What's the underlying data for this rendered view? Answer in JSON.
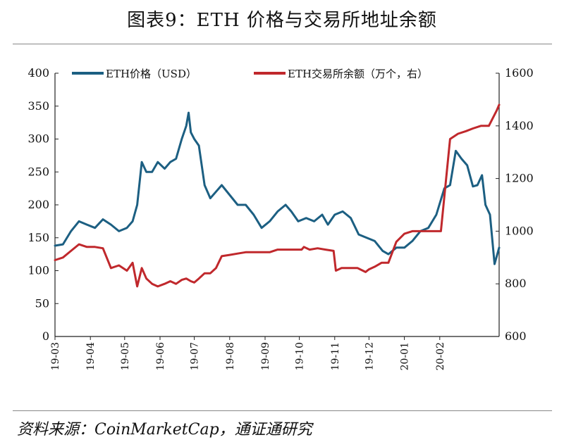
{
  "header": {
    "title": "图表9：ETH 价格与交易所地址余额"
  },
  "footer": {
    "source": "资料来源：CoinMarketCap，通证通研究"
  },
  "colors": {
    "price": "#1c5f82",
    "balance": "#c0282c",
    "axis": "#222222"
  },
  "chart_data": {
    "type": "line",
    "title": "图表9：ETH 价格与交易所地址余额",
    "x_ticks": [
      "19-03",
      "19-04",
      "19-05",
      "19-06",
      "19-07",
      "19-08",
      "19-09",
      "19-10",
      "19-11",
      "19-12",
      "20-01",
      "20-02"
    ],
    "left_axis": {
      "ylim": [
        0,
        400
      ],
      "ticks": [
        0,
        50,
        100,
        150,
        200,
        250,
        300,
        350,
        400
      ]
    },
    "right_axis": {
      "ylim": [
        600,
        1600
      ],
      "ticks": [
        600,
        800,
        1000,
        1200,
        1400,
        1600
      ]
    },
    "legend_position": "top",
    "grid": false,
    "series": [
      {
        "name": "ETH价格（USD）",
        "axis": "left",
        "x": [
          "2019-03-01",
          "2019-03-08",
          "2019-03-15",
          "2019-03-22",
          "2019-03-29",
          "2019-04-05",
          "2019-04-12",
          "2019-04-19",
          "2019-04-26",
          "2019-05-03",
          "2019-05-08",
          "2019-05-12",
          "2019-05-16",
          "2019-05-20",
          "2019-05-25",
          "2019-05-30",
          "2019-06-05",
          "2019-06-10",
          "2019-06-15",
          "2019-06-20",
          "2019-06-24",
          "2019-06-26",
          "2019-06-28",
          "2019-07-01",
          "2019-07-05",
          "2019-07-10",
          "2019-07-15",
          "2019-07-20",
          "2019-07-25",
          "2019-08-01",
          "2019-08-08",
          "2019-08-15",
          "2019-08-22",
          "2019-08-29",
          "2019-09-05",
          "2019-09-12",
          "2019-09-19",
          "2019-09-24",
          "2019-09-30",
          "2019-10-07",
          "2019-10-14",
          "2019-10-21",
          "2019-10-26",
          "2019-11-01",
          "2019-11-08",
          "2019-11-15",
          "2019-11-22",
          "2019-11-29",
          "2019-12-06",
          "2019-12-13",
          "2019-12-18",
          "2019-12-25",
          "2020-01-01",
          "2020-01-08",
          "2020-01-15",
          "2020-01-22",
          "2020-01-29",
          "2020-02-05",
          "2020-02-10",
          "2020-02-15",
          "2020-02-20",
          "2020-02-25",
          "2020-03-01",
          "2020-03-05",
          "2020-03-09",
          "2020-03-12",
          "2020-03-16",
          "2020-03-20",
          "2020-03-24"
        ],
        "values": [
          138,
          140,
          160,
          175,
          170,
          165,
          178,
          170,
          160,
          165,
          175,
          200,
          265,
          250,
          250,
          265,
          255,
          265,
          270,
          300,
          320,
          340,
          310,
          300,
          290,
          230,
          210,
          220,
          230,
          215,
          200,
          200,
          185,
          165,
          175,
          190,
          200,
          190,
          175,
          180,
          175,
          185,
          170,
          185,
          190,
          180,
          155,
          150,
          145,
          130,
          125,
          135,
          135,
          145,
          160,
          165,
          185,
          225,
          230,
          282,
          270,
          260,
          228,
          230,
          245,
          200,
          185,
          110,
          135
        ]
      },
      {
        "name": "ETH交易所余额（万个，右）",
        "axis": "right",
        "x": [
          "2019-03-01",
          "2019-03-08",
          "2019-03-15",
          "2019-03-22",
          "2019-03-29",
          "2019-04-05",
          "2019-04-12",
          "2019-04-19",
          "2019-04-26",
          "2019-05-03",
          "2019-05-08",
          "2019-05-12",
          "2019-05-16",
          "2019-05-20",
          "2019-05-25",
          "2019-05-30",
          "2019-06-05",
          "2019-06-10",
          "2019-06-15",
          "2019-06-20",
          "2019-06-24",
          "2019-06-28",
          "2019-07-01",
          "2019-07-05",
          "2019-07-10",
          "2019-07-15",
          "2019-07-20",
          "2019-07-25",
          "2019-08-01",
          "2019-08-08",
          "2019-08-15",
          "2019-08-22",
          "2019-08-29",
          "2019-09-05",
          "2019-09-12",
          "2019-09-19",
          "2019-09-26",
          "2019-10-03",
          "2019-10-05",
          "2019-10-10",
          "2019-10-17",
          "2019-10-24",
          "2019-10-31",
          "2019-11-02",
          "2019-11-07",
          "2019-11-14",
          "2019-11-21",
          "2019-11-28",
          "2019-12-01",
          "2019-12-06",
          "2019-12-12",
          "2019-12-18",
          "2019-12-25",
          "2020-01-01",
          "2020-01-08",
          "2020-01-15",
          "2020-01-22",
          "2020-01-29",
          "2020-02-01",
          "2020-02-02",
          "2020-02-10",
          "2020-02-17",
          "2020-02-24",
          "2020-03-01",
          "2020-03-08",
          "2020-03-15",
          "2020-03-22",
          "2020-03-24"
        ],
        "values": [
          890,
          900,
          925,
          950,
          940,
          940,
          935,
          860,
          870,
          850,
          880,
          790,
          860,
          820,
          800,
          790,
          800,
          810,
          800,
          815,
          820,
          810,
          805,
          820,
          840,
          840,
          860,
          905,
          910,
          915,
          920,
          920,
          920,
          920,
          930,
          930,
          930,
          930,
          940,
          930,
          935,
          930,
          925,
          850,
          860,
          860,
          860,
          845,
          855,
          865,
          880,
          880,
          960,
          990,
          1000,
          1000,
          1000,
          1000,
          1000,
          1000,
          1350,
          1370,
          1380,
          1390,
          1400,
          1400,
          1460,
          1480
        ]
      }
    ]
  }
}
